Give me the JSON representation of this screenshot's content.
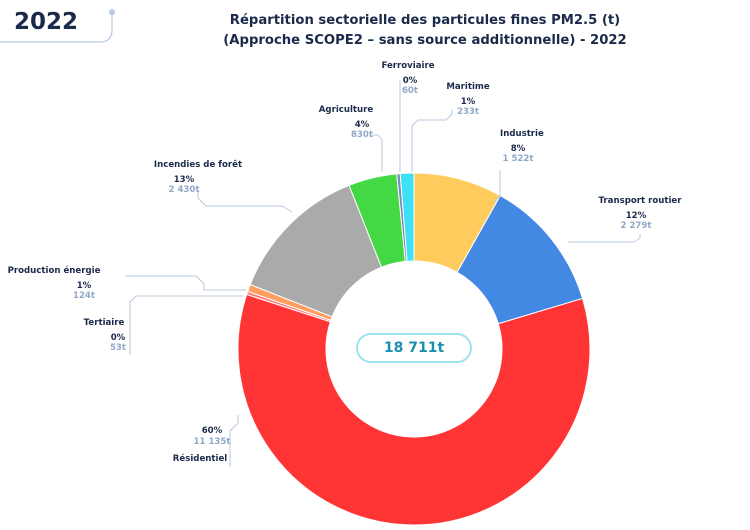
{
  "header": {
    "year": "2022",
    "title_line1": "Répartition sectorielle des particules fines PM2.5 (t)",
    "title_line2": "(Approche SCOPE2 – sans source additionnelle) - 2022"
  },
  "chart_data": {
    "type": "pie",
    "variant": "donut",
    "total_label": "18 711t",
    "total": 18711,
    "slices": [
      {
        "name": "Industrie",
        "value": 1522,
        "pct_label": "8%",
        "value_label": "1 522t",
        "color": "#ffcb5c"
      },
      {
        "name": "Transport routier",
        "value": 2279,
        "pct_label": "12%",
        "value_label": "2 279t",
        "color": "#4388e3"
      },
      {
        "name": "Résidentiel",
        "value": 11135,
        "pct_label": "60%",
        "value_label": "11 135t",
        "color": "#ff3535"
      },
      {
        "name": "Tertiaire",
        "value": 53,
        "pct_label": "0%",
        "value_label": "53t",
        "color": "#ff7b7b"
      },
      {
        "name": "Production énergie",
        "value": 124,
        "pct_label": "1%",
        "value_label": "124t",
        "color": "#ff9e5e"
      },
      {
        "name": "Incendies de forêt",
        "value": 2430,
        "pct_label": "13%",
        "value_label": "2 430t",
        "color": "#aaaaaa"
      },
      {
        "name": "Agriculture",
        "value": 830,
        "pct_label": "4%",
        "value_label": "830t",
        "color": "#45d845"
      },
      {
        "name": "Ferroviaire",
        "value": 60,
        "pct_label": "0%",
        "value_label": "60t",
        "color": "#7a8cb8"
      },
      {
        "name": "Maritime",
        "value": 233,
        "pct_label": "1%",
        "value_label": "233t",
        "color": "#3ee0f5"
      }
    ]
  }
}
